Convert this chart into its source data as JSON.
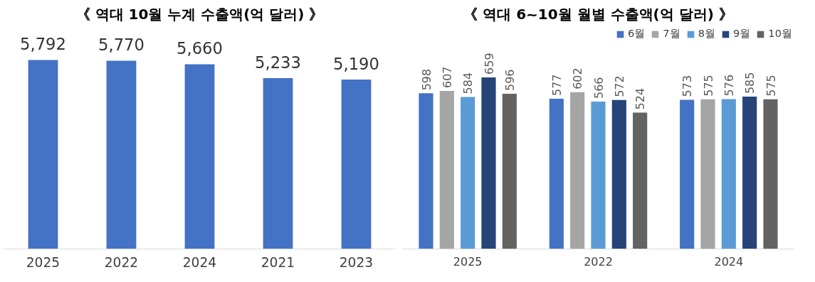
{
  "chart_data": [
    {
      "type": "bar",
      "title": "《 역대 10월 누계 수출액(억 달러) 》",
      "categories": [
        "2025",
        "2022",
        "2024",
        "2021",
        "2023"
      ],
      "values": [
        5792,
        5770,
        5660,
        5233,
        5190
      ],
      "value_labels": [
        "5,792",
        "5,770",
        "5,660",
        "5,233",
        "5,190"
      ],
      "color": "#4472c4",
      "tick_labels": "x",
      "grid": false
    },
    {
      "type": "bar",
      "title": "《 역대 6~10월 월별 수출액(억 달러) 》",
      "categories": [
        "2025",
        "2022",
        "2024"
      ],
      "tick_labels": "x",
      "grid": false,
      "data_labels": true,
      "legend": "top right",
      "series": [
        {
          "name": "6월",
          "color": "#4472c4",
          "values": [
            598,
            577,
            573
          ]
        },
        {
          "name": "7월",
          "color": "#a5a5a5",
          "values": [
            607,
            602,
            575
          ]
        },
        {
          "name": "8월",
          "color": "#5b9bd5",
          "values": [
            584,
            566,
            576
          ]
        },
        {
          "name": "9월",
          "color": "#264478",
          "values": [
            659,
            572,
            585
          ]
        },
        {
          "name": "10월",
          "color": "#636363",
          "values": [
            596,
            524,
            575
          ]
        }
      ]
    }
  ]
}
